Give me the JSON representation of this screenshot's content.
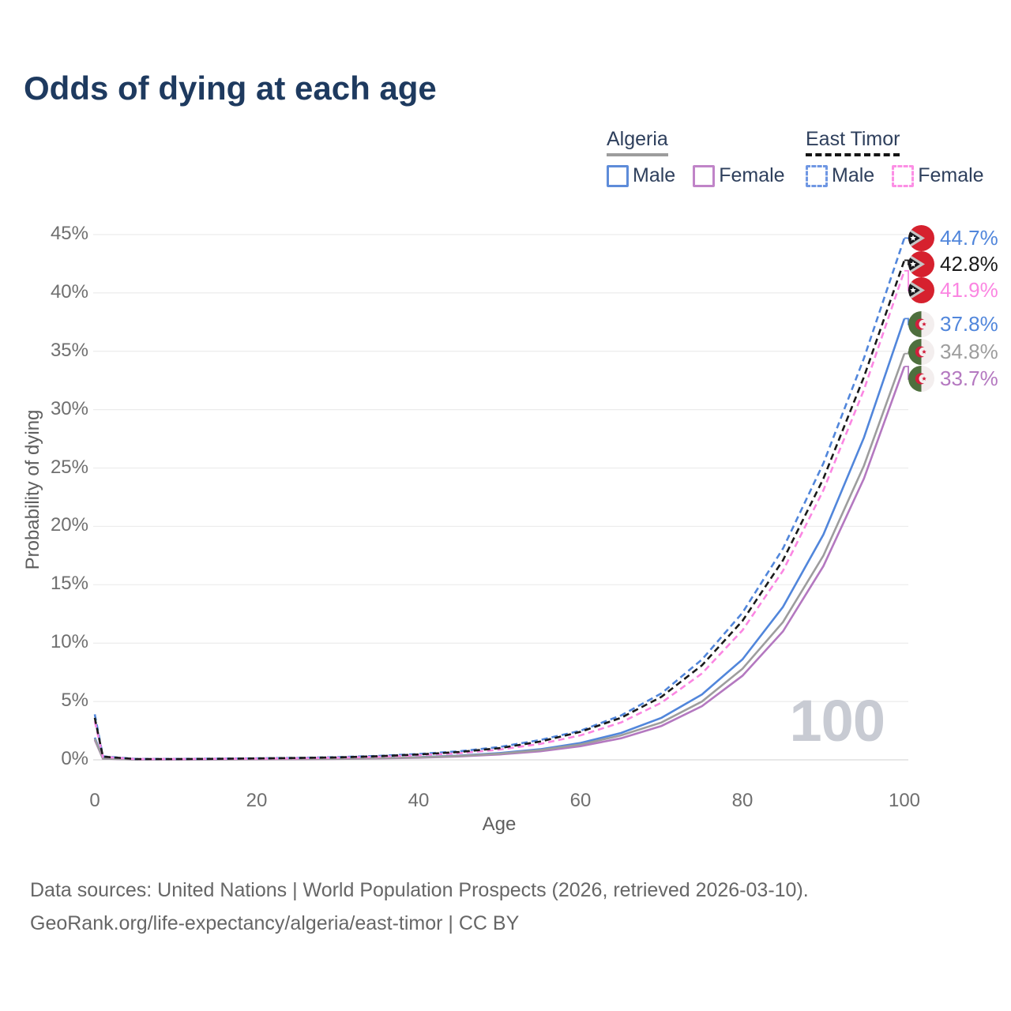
{
  "title": "Odds of dying at each age",
  "watermark": "100",
  "legend": {
    "groups": [
      {
        "label": "Algeria",
        "line_style": "solid",
        "underline_color": "#9d9d9d",
        "entries": [
          {
            "label": "Male",
            "color": "#5e8cd9",
            "checkbox_style": "solid"
          },
          {
            "label": "Female",
            "color": "#c084c8",
            "checkbox_style": "solid"
          }
        ]
      },
      {
        "label": "East Timor",
        "line_style": "dashed",
        "underline_color": "#141414",
        "entries": [
          {
            "label": "Male",
            "color": "#6f97e3",
            "checkbox_style": "dashed"
          },
          {
            "label": "Female",
            "color": "#fc8fe5",
            "checkbox_style": "dashed"
          }
        ]
      }
    ]
  },
  "axes": {
    "x_label": "Age",
    "y_label": "Probability of dying"
  },
  "footer": {
    "line1": "Data sources: United Nations | World Population Prospects (2026, retrieved 2026-03-10).",
    "line2": "GeoRank.org/life-expectancy/algeria/east-timor | CC BY"
  },
  "chart_data": {
    "type": "line",
    "title": "Odds of dying at each age",
    "xlabel": "Age",
    "ylabel": "Probability of dying",
    "xlim": [
      0,
      100
    ],
    "ylim": [
      0,
      45
    ],
    "x_ticks": [
      0,
      20,
      40,
      60,
      80,
      100
    ],
    "y_ticks": [
      0,
      5,
      10,
      15,
      20,
      25,
      30,
      35,
      40,
      45
    ],
    "y_tick_suffix": "%",
    "grid": true,
    "legend_position": "top-right",
    "ages": [
      0,
      1,
      5,
      10,
      15,
      20,
      25,
      30,
      35,
      40,
      45,
      50,
      55,
      60,
      65,
      70,
      75,
      80,
      85,
      90,
      95,
      100
    ],
    "series": [
      {
        "name": "East Timor Male",
        "country": "East Timor",
        "sex": "male",
        "flag": "east-timor",
        "color": "#5186db",
        "dash": true,
        "end_label": "44.7%",
        "values": [
          3.9,
          0.3,
          0.08,
          0.08,
          0.1,
          0.13,
          0.17,
          0.23,
          0.34,
          0.5,
          0.73,
          1.1,
          1.7,
          2.5,
          3.8,
          5.7,
          8.6,
          12.6,
          18.1,
          25.4,
          34.4,
          44.7
        ]
      },
      {
        "name": "East Timor",
        "country": "East Timor",
        "sex": "both",
        "flag": "east-timor",
        "color": "#1a1a1a",
        "dash": true,
        "end_label": "42.8%",
        "values": [
          3.6,
          0.28,
          0.07,
          0.07,
          0.09,
          0.12,
          0.16,
          0.21,
          0.31,
          0.46,
          0.67,
          1.0,
          1.56,
          2.4,
          3.6,
          5.4,
          8.1,
          11.9,
          17.1,
          24.1,
          32.8,
          42.8
        ]
      },
      {
        "name": "East Timor Female",
        "country": "East Timor",
        "sex": "female",
        "flag": "east-timor",
        "color": "#fb86e2",
        "dash": true,
        "end_label": "41.9%",
        "values": [
          3.3,
          0.26,
          0.06,
          0.06,
          0.08,
          0.1,
          0.13,
          0.18,
          0.26,
          0.39,
          0.57,
          0.88,
          1.36,
          2.1,
          3.2,
          4.9,
          7.4,
          11.1,
          16.2,
          23.1,
          31.7,
          41.9
        ]
      },
      {
        "name": "Algeria Male",
        "country": "Algeria",
        "sex": "male",
        "flag": "algeria",
        "color": "#5186db",
        "dash": false,
        "end_label": "37.8%",
        "values": [
          1.9,
          0.12,
          0.04,
          0.03,
          0.05,
          0.07,
          0.08,
          0.1,
          0.15,
          0.23,
          0.36,
          0.58,
          0.91,
          1.45,
          2.3,
          3.6,
          5.6,
          8.6,
          13.1,
          19.3,
          27.6,
          37.8
        ]
      },
      {
        "name": "Algeria",
        "country": "Algeria",
        "sex": "both",
        "flag": "algeria",
        "color": "#9d9d9d",
        "dash": false,
        "end_label": "34.8%",
        "values": [
          1.8,
          0.11,
          0.03,
          0.03,
          0.04,
          0.06,
          0.07,
          0.09,
          0.14,
          0.21,
          0.33,
          0.53,
          0.83,
          1.31,
          2.1,
          3.2,
          5.0,
          7.8,
          11.8,
          17.5,
          25.2,
          34.8
        ]
      },
      {
        "name": "Algeria Female",
        "country": "Algeria",
        "sex": "female",
        "flag": "algeria",
        "color": "#b478c0",
        "dash": false,
        "end_label": "33.7%",
        "values": [
          1.7,
          0.1,
          0.03,
          0.03,
          0.04,
          0.05,
          0.06,
          0.08,
          0.12,
          0.18,
          0.29,
          0.46,
          0.73,
          1.17,
          1.85,
          2.9,
          4.6,
          7.2,
          11.0,
          16.6,
          24.1,
          33.7
        ]
      }
    ]
  }
}
